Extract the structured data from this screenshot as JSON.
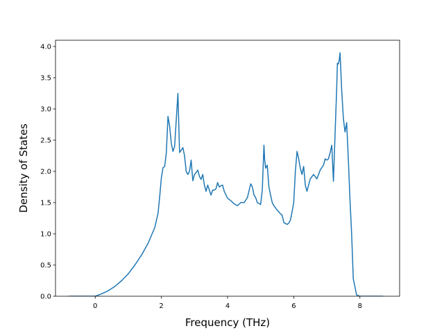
{
  "chart_data": {
    "type": "line",
    "xlabel": "Frequency (THz)",
    "ylabel": "Density of States",
    "xlim": [
      -1.2,
      9.2
    ],
    "ylim": [
      0.0,
      4.1
    ],
    "xticks": [
      0,
      2,
      4,
      6,
      8
    ],
    "xtick_labels": [
      "0",
      "2",
      "4",
      "6",
      "8"
    ],
    "yticks": [
      0.0,
      0.5,
      1.0,
      1.5,
      2.0,
      2.5,
      3.0,
      3.5,
      4.0
    ],
    "ytick_labels": [
      "0.0",
      "0.5",
      "1.0",
      "1.5",
      "2.0",
      "2.5",
      "3.0",
      "3.5",
      "4.0"
    ],
    "grid": false,
    "series": [
      {
        "color": "#1f77b4",
        "x": [
          -0.8,
          0.0,
          0.2,
          0.4,
          0.6,
          0.8,
          1.0,
          1.2,
          1.4,
          1.6,
          1.8,
          1.9,
          1.95,
          2.0,
          2.05,
          2.1,
          2.15,
          2.2,
          2.25,
          2.3,
          2.35,
          2.4,
          2.5,
          2.55,
          2.65,
          2.7,
          2.75,
          2.8,
          2.85,
          2.9,
          2.95,
          3.0,
          3.05,
          3.1,
          3.15,
          3.2,
          3.25,
          3.3,
          3.35,
          3.4,
          3.45,
          3.5,
          3.55,
          3.6,
          3.65,
          3.7,
          3.75,
          3.8,
          3.85,
          3.9,
          4.0,
          4.1,
          4.2,
          4.3,
          4.4,
          4.5,
          4.6,
          4.7,
          4.75,
          4.8,
          4.85,
          4.9,
          5.0,
          5.05,
          5.1,
          5.12,
          5.15,
          5.2,
          5.25,
          5.3,
          5.35,
          5.4,
          5.5,
          5.6,
          5.65,
          5.7,
          5.8,
          5.85,
          5.9,
          5.95,
          6.0,
          6.05,
          6.1,
          6.15,
          6.2,
          6.25,
          6.3,
          6.35,
          6.4,
          6.5,
          6.6,
          6.7,
          6.8,
          6.9,
          6.95,
          7.0,
          7.05,
          7.1,
          7.15,
          7.2,
          7.25,
          7.3,
          7.32,
          7.35,
          7.38,
          7.4,
          7.45,
          7.5,
          7.55,
          7.6,
          7.65,
          7.7,
          7.75,
          7.8,
          7.85,
          7.9,
          8.0,
          8.5,
          8.7
        ],
        "y": [
          0.0,
          0.0,
          0.04,
          0.09,
          0.16,
          0.25,
          0.36,
          0.5,
          0.66,
          0.85,
          1.1,
          1.33,
          1.6,
          1.9,
          2.06,
          2.08,
          2.3,
          2.88,
          2.72,
          2.45,
          2.32,
          2.4,
          3.25,
          2.3,
          2.38,
          2.25,
          2.0,
          1.95,
          2.0,
          2.18,
          1.85,
          1.95,
          1.98,
          2.02,
          1.92,
          1.87,
          1.95,
          1.78,
          1.68,
          1.78,
          1.7,
          1.62,
          1.7,
          1.7,
          1.72,
          1.82,
          1.75,
          1.77,
          1.78,
          1.68,
          1.57,
          1.53,
          1.48,
          1.45,
          1.5,
          1.5,
          1.58,
          1.8,
          1.75,
          1.62,
          1.58,
          1.5,
          1.47,
          1.7,
          2.42,
          2.2,
          2.05,
          2.1,
          1.75,
          1.62,
          1.5,
          1.45,
          1.38,
          1.32,
          1.3,
          1.18,
          1.15,
          1.17,
          1.22,
          1.35,
          1.5,
          2.0,
          2.32,
          2.2,
          2.05,
          1.95,
          2.08,
          1.78,
          1.68,
          1.88,
          1.95,
          1.88,
          2.02,
          2.1,
          2.2,
          2.18,
          2.2,
          2.3,
          2.42,
          1.84,
          2.6,
          3.35,
          3.73,
          3.72,
          3.8,
          3.9,
          3.3,
          2.85,
          2.63,
          2.78,
          2.2,
          1.55,
          1.0,
          0.28,
          0.15,
          0.02,
          0.0,
          0.0,
          0.0
        ]
      }
    ]
  }
}
